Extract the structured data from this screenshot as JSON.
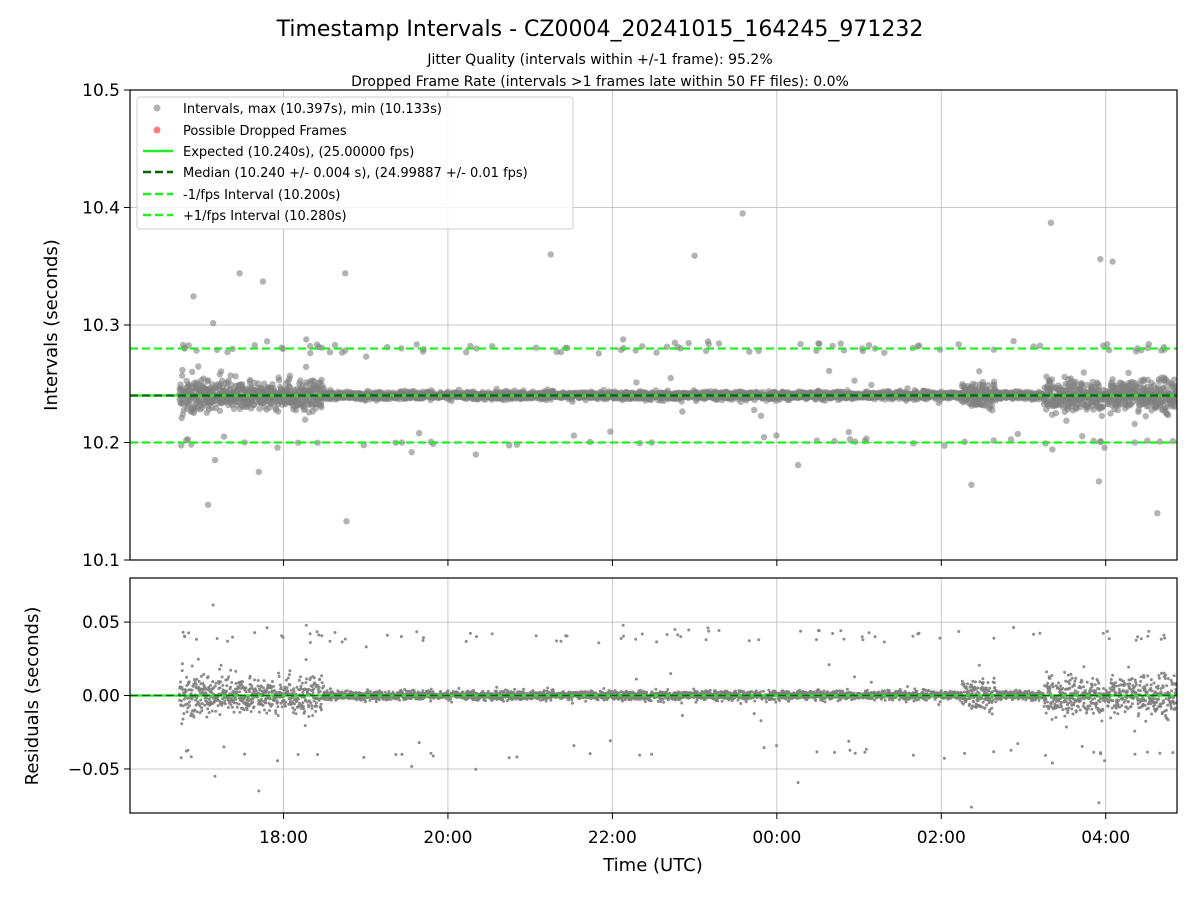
{
  "figure": {
    "title": "Timestamp Intervals - CZ0004_20241015_164245_971232",
    "subtitle_1": "Jitter Quality (intervals within +/-1 frame): 95.2%",
    "subtitle_2": "Dropped Frame Rate (intervals >1 frames late within 50 FF files): 0.0%"
  },
  "colors": {
    "scatter": "#808080",
    "dropped": "#ff4444",
    "expected": "#22ee22",
    "median": "#006400",
    "fps_bounds": "#22ee22",
    "grid": "#b0b0b0"
  },
  "legend": {
    "placement": "top-left",
    "items": [
      {
        "label": "Intervals, max (10.397s), min (10.133s)",
        "kind": "dot",
        "color_key": "scatter"
      },
      {
        "label": "Possible Dropped Frames",
        "kind": "dot",
        "color_key": "dropped"
      },
      {
        "label": "Expected (10.240s), (25.00000 fps)",
        "kind": "solid",
        "color_key": "expected"
      },
      {
        "label": "Median (10.240 +/- 0.004 s), (24.99887 +/- 0.01 fps)",
        "kind": "dashed",
        "color_key": "median"
      },
      {
        "label": "-1/fps Interval (10.200s)",
        "kind": "dashed",
        "color_key": "fps_bounds"
      },
      {
        "label": "+1/fps Interval (10.280s)",
        "kind": "dashed",
        "color_key": "fps_bounds"
      }
    ]
  },
  "chart_data": [
    {
      "type": "scatter",
      "panel": "intervals",
      "xlabel": "",
      "ylabel": "Intervals (seconds)",
      "xlim": [
        "16:08",
        "04:52"
      ],
      "ylim": [
        10.1,
        10.5
      ],
      "yticks": [
        "10.1",
        "10.2",
        "10.3",
        "10.4",
        "10.5"
      ],
      "xticks": [
        "18:00",
        "20:00",
        "22:00",
        "00:00",
        "02:00",
        "04:00"
      ],
      "grid": true,
      "x_start": "16:44",
      "x_end": "04:52",
      "sample_interval_s": 10.24,
      "expected": 10.24,
      "median": 10.24,
      "lower_bound": 10.2,
      "upper_bound": 10.28,
      "max": 10.397,
      "min": 10.133,
      "approx_point_count": 4250,
      "notable_points": [
        {
          "x": "23:35",
          "y": 10.395
        },
        {
          "x": "03:20",
          "y": 10.387
        },
        {
          "x": "03:56",
          "y": 10.356
        },
        {
          "x": "04:05",
          "y": 10.354
        },
        {
          "x": "21:15",
          "y": 10.36
        },
        {
          "x": "17:28",
          "y": 10.344
        },
        {
          "x": "18:45",
          "y": 10.344
        },
        {
          "x": "23:00",
          "y": 10.359
        },
        {
          "x": "17:45",
          "y": 10.337
        },
        {
          "x": "17:05",
          "y": 10.147
        },
        {
          "x": "18:46",
          "y": 10.133
        },
        {
          "x": "03:55",
          "y": 10.167
        },
        {
          "x": "02:22",
          "y": 10.164
        },
        {
          "x": "17:10",
          "y": 10.185
        },
        {
          "x": "17:42",
          "y": 10.175
        }
      ]
    },
    {
      "type": "scatter",
      "panel": "residuals",
      "xlabel": "Time (UTC)",
      "ylabel": "Residuals (seconds)",
      "xlim": [
        "16:08",
        "04:52"
      ],
      "ylim": [
        -0.08,
        0.08
      ],
      "yticks": [
        "−0.05",
        "0.00",
        "0.05"
      ],
      "ytick_values": [
        -0.05,
        0.0,
        0.05
      ],
      "xticks": [
        "18:00",
        "20:00",
        "22:00",
        "00:00",
        "02:00",
        "04:00"
      ],
      "grid": true,
      "zero_line": 0.0,
      "derived_from": "intervals minus median"
    }
  ]
}
